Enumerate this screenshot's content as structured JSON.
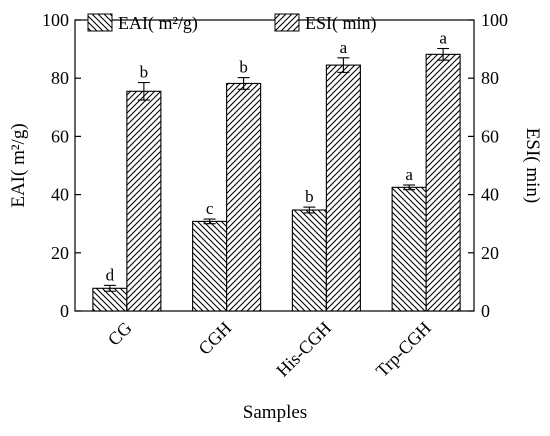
{
  "chart_data": {
    "type": "bar",
    "categories": [
      "CG",
      "CGH",
      "His-CGH",
      "Trp-CGH"
    ],
    "series": [
      {
        "name": "EAI( m²/g)",
        "axis": "left",
        "pattern": "back-diagonal",
        "values": [
          7.8,
          30.8,
          34.7,
          42.5
        ],
        "errors": [
          1.0,
          0.8,
          1.0,
          0.8
        ],
        "significance": [
          "d",
          "c",
          "b",
          "a"
        ]
      },
      {
        "name": "ESI( min)",
        "axis": "right",
        "pattern": "forward-diagonal",
        "values": [
          75.5,
          78.2,
          84.5,
          88.2
        ],
        "errors": [
          3.0,
          2.0,
          2.5,
          2.0
        ],
        "significance": [
          "b",
          "b",
          "a",
          "a"
        ]
      }
    ],
    "xlabel": "Samples",
    "ylabel_left": "EAI( m²/g)",
    "ylabel_right": "ESI( min)",
    "ylim_left": [
      0,
      100
    ],
    "ylim_right": [
      0,
      100
    ],
    "yticks_left": [
      "0",
      "20",
      "40",
      "60",
      "80",
      "100"
    ],
    "yticks_right": [
      "0",
      "20",
      "40",
      "60",
      "80",
      "100"
    ],
    "legend_position": "top",
    "grid": false
  }
}
